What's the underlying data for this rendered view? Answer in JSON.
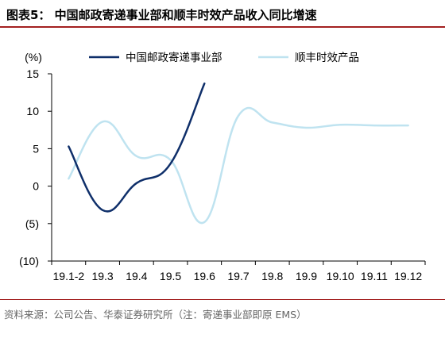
{
  "header": {
    "title": "图表5：  中国邮政寄递事业部和顺丰时效产品收入同比增速"
  },
  "footer": {
    "source": "资料来源：公司公告、华泰证券研究所（注：寄递事业部即原 EMS）"
  },
  "colors": {
    "accent": "#a32020",
    "series_dark": "#0f2f6a",
    "series_light": "#bfe3f0",
    "axis": "#000000"
  },
  "chart_data": {
    "type": "line",
    "title": "",
    "xlabel": "",
    "ylabel": "(%)",
    "categories": [
      "19.1-2",
      "19.3",
      "19.4",
      "19.5",
      "19.6",
      "19.7",
      "19.8",
      "19.9",
      "19.10",
      "19.11",
      "19.12"
    ],
    "yticks": [
      15,
      10,
      5,
      0,
      -5,
      -10
    ],
    "ytick_labels": [
      "15",
      "10",
      "5",
      "0",
      "(5)",
      "(10)"
    ],
    "ylim": [
      -10,
      15
    ],
    "grid": false,
    "legend_position": "top",
    "series": [
      {
        "name": "中国邮政寄递事业部",
        "color": "#0f2f6a",
        "values": [
          5.3,
          -3.2,
          0.4,
          3.0,
          13.7,
          null,
          null,
          null,
          null,
          null,
          null
        ]
      },
      {
        "name": "顺丰时效产品",
        "color": "#bfe3f0",
        "values": [
          1.0,
          8.6,
          4.0,
          3.5,
          -4.8,
          9.4,
          8.5,
          7.8,
          8.2,
          8.1,
          8.1
        ]
      }
    ]
  }
}
